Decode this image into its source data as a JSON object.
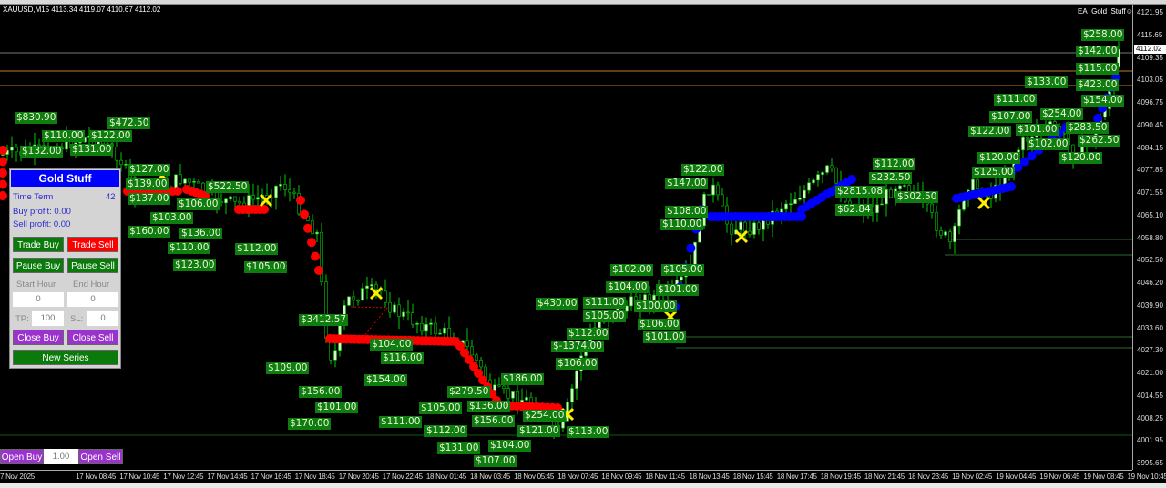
{
  "window": {
    "symbol_line": "XAUUSD,M15  4113.34 4119.07 4110.67 4112.02",
    "ea_name": "EA_Gold_Stuff☺"
  },
  "price_axis": {
    "labels": [
      "4121.95",
      "4115.65",
      "4109.35",
      "4103.05",
      "4096.75",
      "4090.45",
      "4084.15",
      "4077.85",
      "4071.55",
      "4065.10",
      "4058.80",
      "4052.50",
      "4046.20",
      "4039.90",
      "4033.60",
      "4027.30",
      "4021.00",
      "4014.55",
      "4008.25",
      "4001.95",
      "3995.65"
    ],
    "current_price": "4112.02"
  },
  "time_axis": {
    "labels": [
      "7 Nov 2025",
      "17 Nov 08:45",
      "17 Nov 10:45",
      "17 Nov 12:45",
      "17 Nov 14:45",
      "17 Nov 16:45",
      "17 Nov 18:45",
      "17 Nov 20:45",
      "17 Nov 22:45",
      "18 Nov 01:45",
      "18 Nov 03:45",
      "18 Nov 05:45",
      "18 Nov 07:45",
      "18 Nov 09:45",
      "18 Nov 11:45",
      "18 Nov 13:45",
      "18 Nov 15:45",
      "18 Nov 17:45",
      "18 Nov 19:45",
      "18 Nov 21:45",
      "18 Nov 23:45",
      "19 Nov 02:45",
      "19 Nov 04:45",
      "19 Nov 06:45",
      "19 Nov 08:45",
      "19 Nov 10:45"
    ]
  },
  "colors": {
    "background": "#000000",
    "candle_up": "#d8f5c8",
    "wick": "#00c800",
    "sell_trail": "#ff0000",
    "buy_trail": "#0000ff",
    "profit_label": "#0d7d0d",
    "panel_title": "#0000ff"
  },
  "panel": {
    "title": "Gold Stuff",
    "time_label": "Time Term",
    "time_suffix": "42",
    "buy_profit": "Buy profit: 0.00",
    "sell_profit": "Sell profit: 0.00",
    "trade_buy": "Trade Buy",
    "trade_sell": "Trade Sell",
    "pause_buy": "Pause Buy",
    "pause_sell": "Pause Sell",
    "start_hour_label": "Start Hour",
    "end_hour_label": "End Hour",
    "start_hour": "0",
    "end_hour": "0",
    "tp_label": "TP:",
    "tp": "100",
    "sl_label": "SL:",
    "sl": "0",
    "close_buy": "Close Buy",
    "close_sell": "Close Sell",
    "new_series": "New Series"
  },
  "order_bar": {
    "open_buy": "Open Buy",
    "lot": "1.00",
    "open_sell": "Open Sell"
  },
  "profit_labels": [
    "$110.00",
    "$132.00",
    "$131.00",
    "$830.90",
    "$122.00",
    "$472.50",
    "$127.00",
    "$137.00",
    "$139.00",
    "$106.00",
    "$103.00",
    "$136.00",
    "$522.50",
    "$110.00",
    "$123.00",
    "$112.00",
    "$105.00",
    "$160.00",
    "$3412.57",
    "$104.00",
    "$116.00",
    "$109.00",
    "$154.00",
    "$156.00",
    "$101.00",
    "$170.00",
    "$186.00",
    "$279.50",
    "$105.00",
    "$136.00",
    "$254.00",
    "$121.00",
    "$112.00",
    "$111.00",
    "$131.00",
    "$156.00",
    "$104.00",
    "$107.00",
    "$113.00",
    "$102.00",
    "$105.00",
    "$104.00",
    "$101.00",
    "$111.00",
    "$100.00",
    "$430.00",
    "$105.00",
    "$112.00",
    "$-1374.00",
    "$106.00",
    "$106.00",
    "$101.00",
    "$147.00",
    "$122.00",
    "$108.00",
    "$110.00",
    "$2815.08",
    "$62.84",
    "$232.50",
    "$112.00",
    "$502.50",
    "$258.00",
    "$142.00",
    "$115.00",
    "$423.00",
    "$154.00",
    "$111.00",
    "$107.00",
    "$254.00",
    "$133.00",
    "$101.00",
    "$122.00",
    "$102.00",
    "$283.50",
    "$262.50",
    "$120.00",
    "$120.00",
    "$125.00"
  ]
}
